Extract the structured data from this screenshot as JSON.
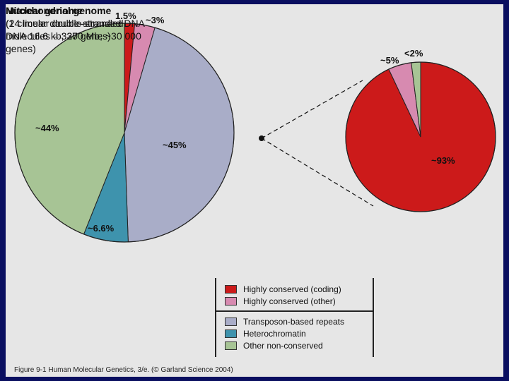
{
  "chart_data": [
    {
      "type": "pie",
      "title": "Nuclear genome",
      "subtitle_lines": [
        "(24 linear double-stranded DNA",
        "molecules – 3200 Mb; ~30 000",
        "genes)"
      ],
      "slices": [
        {
          "label": "1.5%",
          "value": 1.5,
          "category": "Highly conserved (coding)",
          "color": "#cc1a1a"
        },
        {
          "label": "~3%",
          "value": 3,
          "category": "Highly conserved (other)",
          "color": "#d78ab0"
        },
        {
          "label": "~45%",
          "value": 45,
          "category": "Transposon-based repeats",
          "color": "#a9adc8"
        },
        {
          "label": "~6.6%",
          "value": 6.6,
          "category": "Heterochromatin",
          "color": "#3e93ad"
        },
        {
          "label": "~44%",
          "value": 44,
          "category": "Other non-conserved",
          "color": "#a7c495"
        }
      ]
    },
    {
      "type": "pie",
      "title": "Mitochondrial genome",
      "subtitle_lines": [
        "(1 circular double-stranded",
        "DNA 16.6 kb; 37 genes)"
      ],
      "slices": [
        {
          "label": "~93%",
          "value": 93,
          "category": "Highly conserved (coding)",
          "color": "#cc1a1a"
        },
        {
          "label": "~5%",
          "value": 5,
          "category": "Highly conserved (other)",
          "color": "#d78ab0"
        },
        {
          "label": "<2%",
          "value": 2,
          "category": "Other non-conserved",
          "color": "#a7c495"
        }
      ]
    }
  ],
  "legend": {
    "items": [
      {
        "label": "Highly conserved (coding)",
        "color": "#cc1a1a"
      },
      {
        "label": "Highly conserved (other)",
        "color": "#d78ab0"
      },
      {
        "label": "Transposon-based repeats",
        "color": "#a9adc8"
      },
      {
        "label": "Heterochromatin",
        "color": "#3e93ad"
      },
      {
        "label": "Other non-conserved",
        "color": "#a7c495"
      }
    ]
  },
  "footer": {
    "caption": "Figure 9-1  Human Molecular Genetics, 3/e.  (© Garland Science 2004)"
  },
  "colors": {
    "background": "#0a0f60",
    "panel": "#e6e6e6"
  }
}
